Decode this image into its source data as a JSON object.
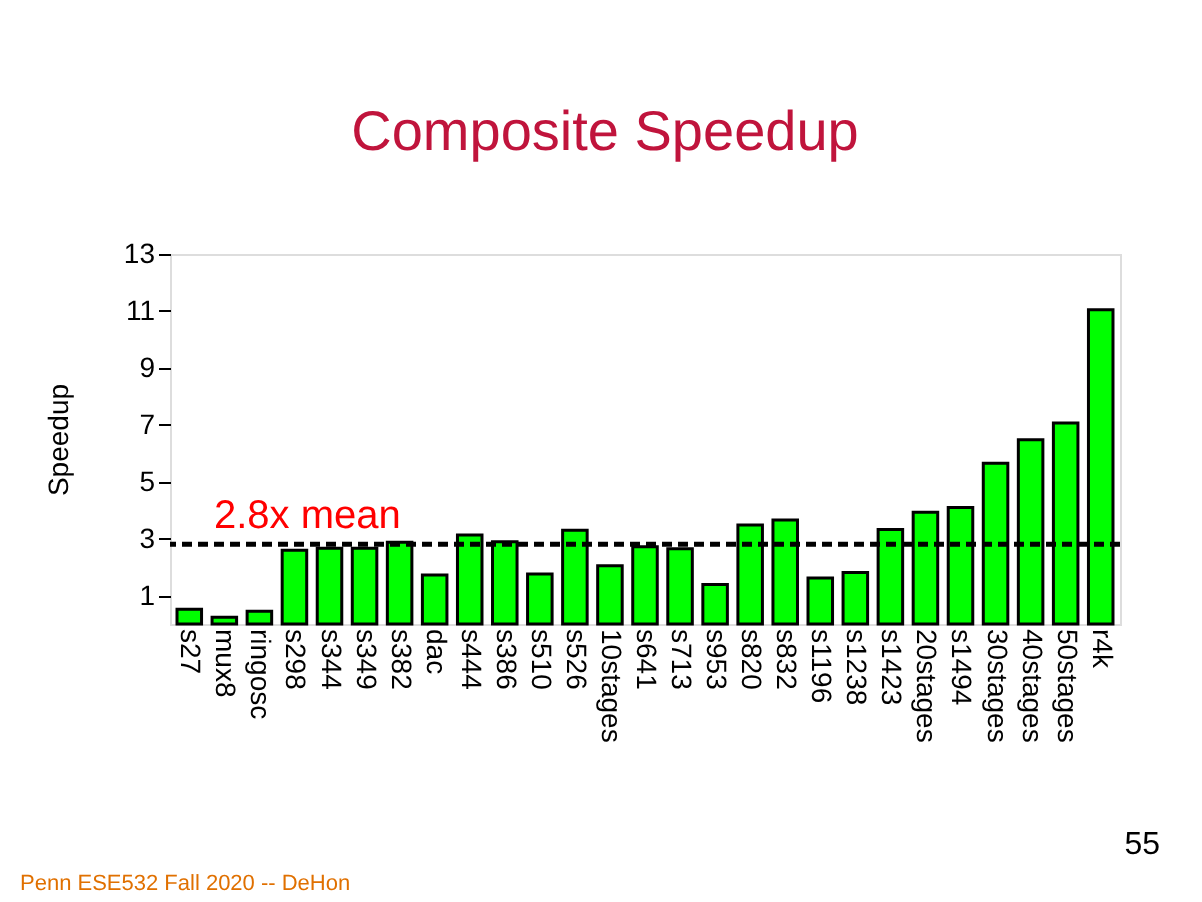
{
  "chart_data": {
    "type": "bar",
    "title": "Composite Speedup",
    "ylabel": "Speedup",
    "categories": [
      "s27",
      "mux8",
      "ringosc",
      "s298",
      "s344",
      "s349",
      "s382",
      "dac",
      "s444",
      "s386",
      "s510",
      "s526",
      "10stages",
      "s641",
      "s713",
      "s953",
      "s820",
      "s832",
      "s1196",
      "s1238",
      "s1423",
      "20stages",
      "s1494",
      "30stages",
      "40stages",
      "50stages",
      "r4k"
    ],
    "values": [
      0.52,
      0.24,
      0.45,
      2.59,
      2.66,
      2.66,
      2.87,
      1.72,
      3.13,
      2.89,
      1.76,
      3.29,
      2.05,
      2.71,
      2.64,
      1.39,
      3.48,
      3.65,
      1.62,
      1.81,
      3.32,
      3.93,
      4.09,
      5.65,
      6.47,
      7.06,
      11.04
    ],
    "color": "#00ff00",
    "ylim": [
      0,
      13
    ],
    "yticks": [
      1,
      3,
      5,
      7,
      9,
      11,
      13
    ],
    "grid": false,
    "ref_lines": [
      {
        "axis": "y",
        "value": 2.8,
        "label": "2.8x mean",
        "color": "#000000",
        "line_style": "dashed"
      }
    ],
    "annotations": [
      "55",
      "Penn ESE532 Fall 2020 -- DeHon"
    ]
  }
}
